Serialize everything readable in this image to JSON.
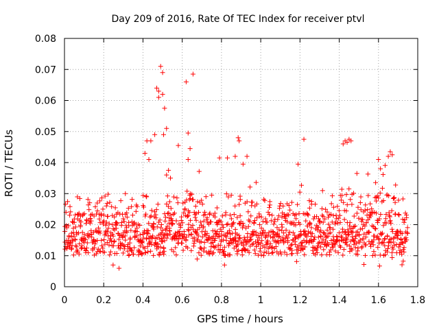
{
  "chart_data": {
    "type": "scatter",
    "title": "Day 209 of 2016, Rate Of TEC Index for receiver ptvl",
    "xlabel": "GPS time / hours",
    "ylabel": "ROTI / TECUs",
    "xlim": [
      0,
      1.8
    ],
    "ylim": [
      0,
      0.08
    ],
    "xticks": [
      "0",
      "0.2",
      "0.4",
      "0.6",
      "0.8",
      "1",
      "1.2",
      "1.4",
      "1.6",
      "1.8"
    ],
    "yticks": [
      "0",
      "0.01",
      "0.02",
      "0.03",
      "0.04",
      "0.05",
      "0.06",
      "0.07",
      "0.08"
    ],
    "grid": true,
    "marker": "+",
    "color": "#ff0000",
    "series": [
      {
        "name": "ROTI",
        "x_start": 0.0,
        "x_end": 1.75,
        "count": 1400,
        "baseline_min": 0.004,
        "baseline_max": 0.034,
        "note": "dense scatter of ROTI samples, ~1400 points across the session",
        "points": [
          [
            0.48,
            0.063
          ],
          [
            0.49,
            0.071
          ],
          [
            0.5,
            0.069
          ],
          [
            0.47,
            0.064
          ],
          [
            0.48,
            0.061
          ],
          [
            0.5,
            0.062
          ],
          [
            0.51,
            0.0575
          ],
          [
            0.62,
            0.066
          ],
          [
            0.655,
            0.0685
          ],
          [
            0.52,
            0.051
          ],
          [
            0.63,
            0.0495
          ],
          [
            0.58,
            0.0455
          ],
          [
            0.64,
            0.0445
          ],
          [
            0.42,
            0.047
          ],
          [
            0.44,
            0.047
          ],
          [
            0.46,
            0.049
          ],
          [
            0.505,
            0.049
          ],
          [
            0.63,
            0.041
          ],
          [
            0.885,
            0.048
          ],
          [
            0.89,
            0.047
          ],
          [
            1.22,
            0.0475
          ],
          [
            1.43,
            0.047
          ],
          [
            1.45,
            0.0475
          ],
          [
            1.46,
            0.047
          ],
          [
            1.44,
            0.0465
          ],
          [
            1.42,
            0.046
          ],
          [
            1.66,
            0.0435
          ],
          [
            1.67,
            0.0425
          ],
          [
            1.65,
            0.042
          ],
          [
            1.19,
            0.0395
          ],
          [
            0.91,
            0.0395
          ],
          [
            0.93,
            0.042
          ],
          [
            0.87,
            0.042
          ],
          [
            0.83,
            0.0415
          ],
          [
            0.43,
            0.041
          ],
          [
            0.41,
            0.043
          ],
          [
            0.53,
            0.0375
          ],
          [
            0.54,
            0.035
          ],
          [
            0.52,
            0.036
          ],
          [
            1.61,
            0.038
          ],
          [
            1.6,
            0.041
          ],
          [
            1.49,
            0.0365
          ],
          [
            0.79,
            0.0415
          ]
        ]
      }
    ]
  }
}
